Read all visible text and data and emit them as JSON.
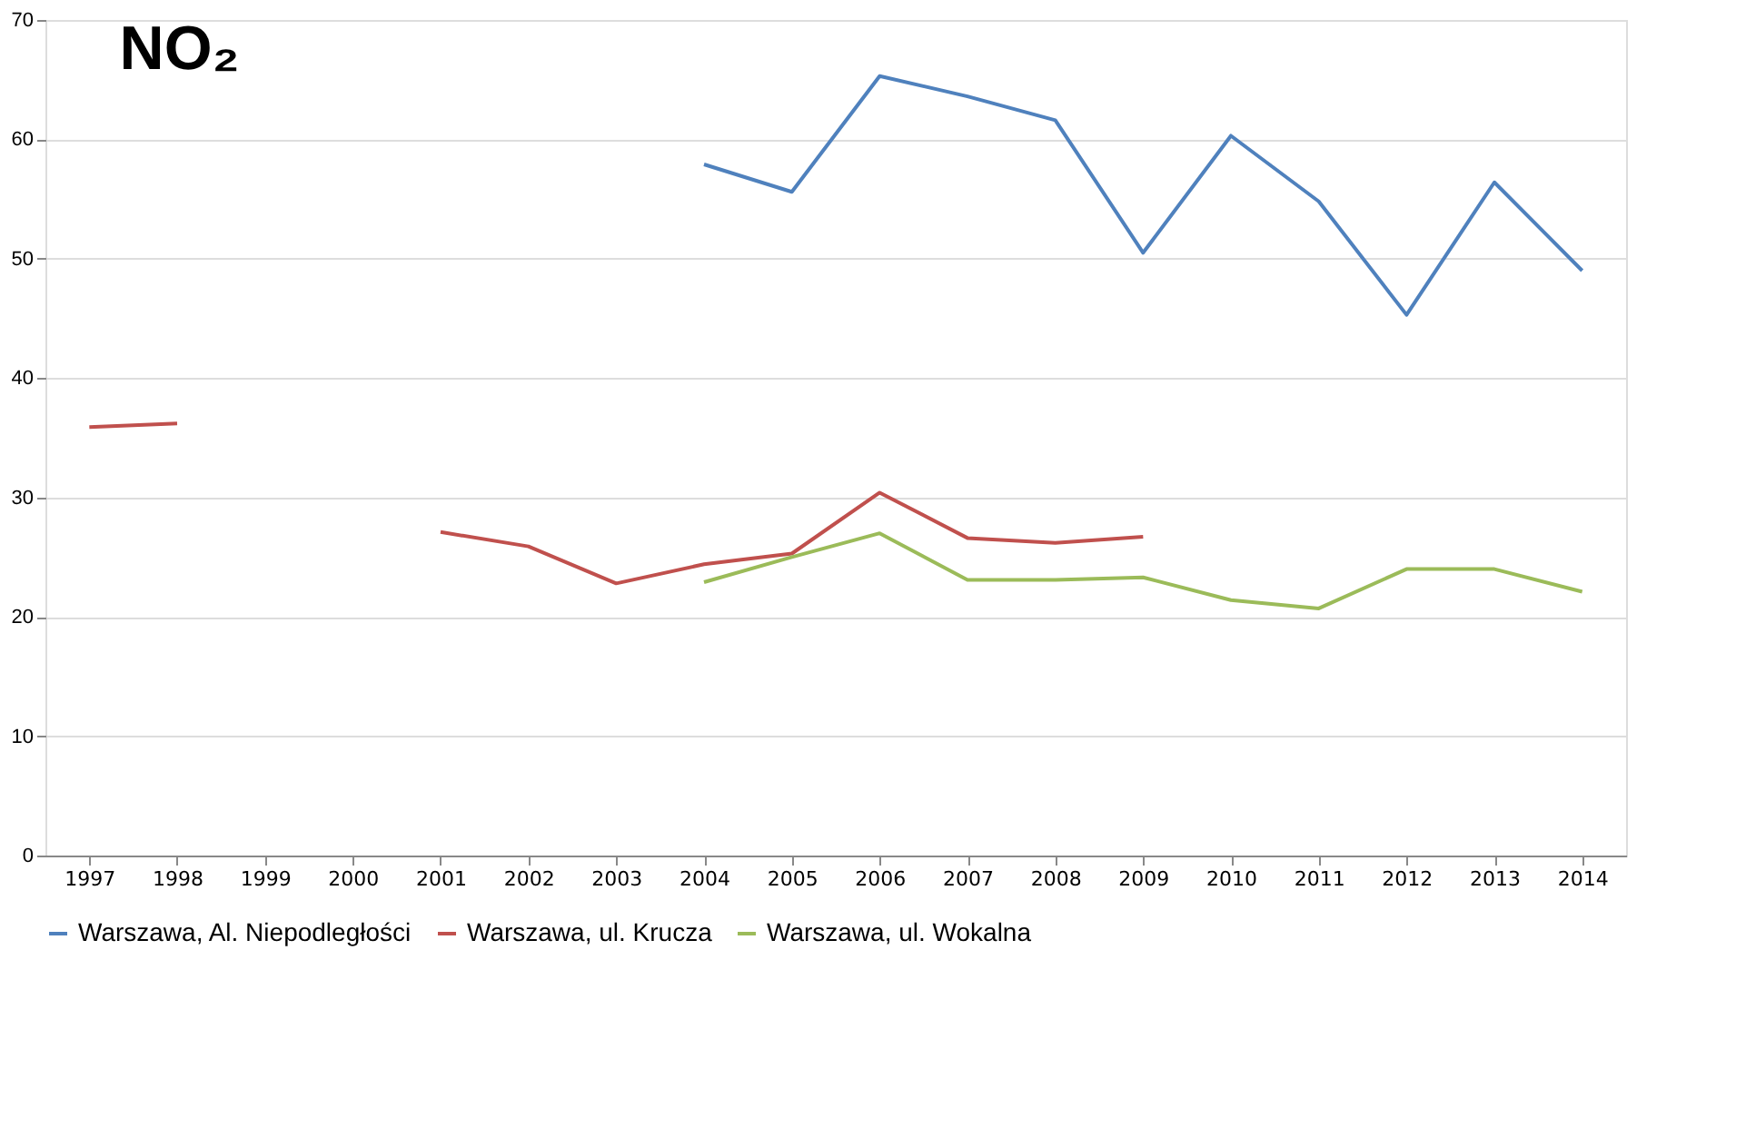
{
  "chart_data": {
    "type": "line",
    "title": "NO₂",
    "categories": [
      "1997",
      "1998",
      "1999",
      "2000",
      "2001",
      "2002",
      "2003",
      "2004",
      "2005",
      "2006",
      "2007",
      "2008",
      "2009",
      "2010",
      "2011",
      "2012",
      "2013",
      "2014"
    ],
    "series": [
      {
        "name": "Warszawa, Al. Niepodległości",
        "color": "#4f81bd",
        "values": [
          null,
          null,
          null,
          null,
          null,
          null,
          null,
          57.9,
          55.6,
          65.3,
          63.6,
          61.6,
          50.5,
          60.3,
          54.8,
          45.3,
          56.4,
          49.0
        ]
      },
      {
        "name": "Warszawa, ul. Krucza",
        "color": "#c0504d",
        "values": [
          35.9,
          36.2,
          null,
          null,
          27.1,
          25.9,
          22.8,
          24.4,
          25.3,
          30.4,
          26.6,
          26.2,
          26.7,
          null,
          null,
          null,
          null,
          null
        ]
      },
      {
        "name": "Warszawa, ul. Wokalna",
        "color": "#9bbb59",
        "values": [
          null,
          null,
          null,
          null,
          null,
          null,
          null,
          22.9,
          25.0,
          27.0,
          23.1,
          23.1,
          23.3,
          21.4,
          20.7,
          24.0,
          24.0,
          22.1
        ]
      }
    ],
    "ylim": [
      0,
      70
    ],
    "yticks": [
      0,
      10,
      20,
      30,
      40,
      50,
      60,
      70
    ],
    "grid": "y",
    "legend": "bottom",
    "marker": "none",
    "line_style": "solid"
  }
}
